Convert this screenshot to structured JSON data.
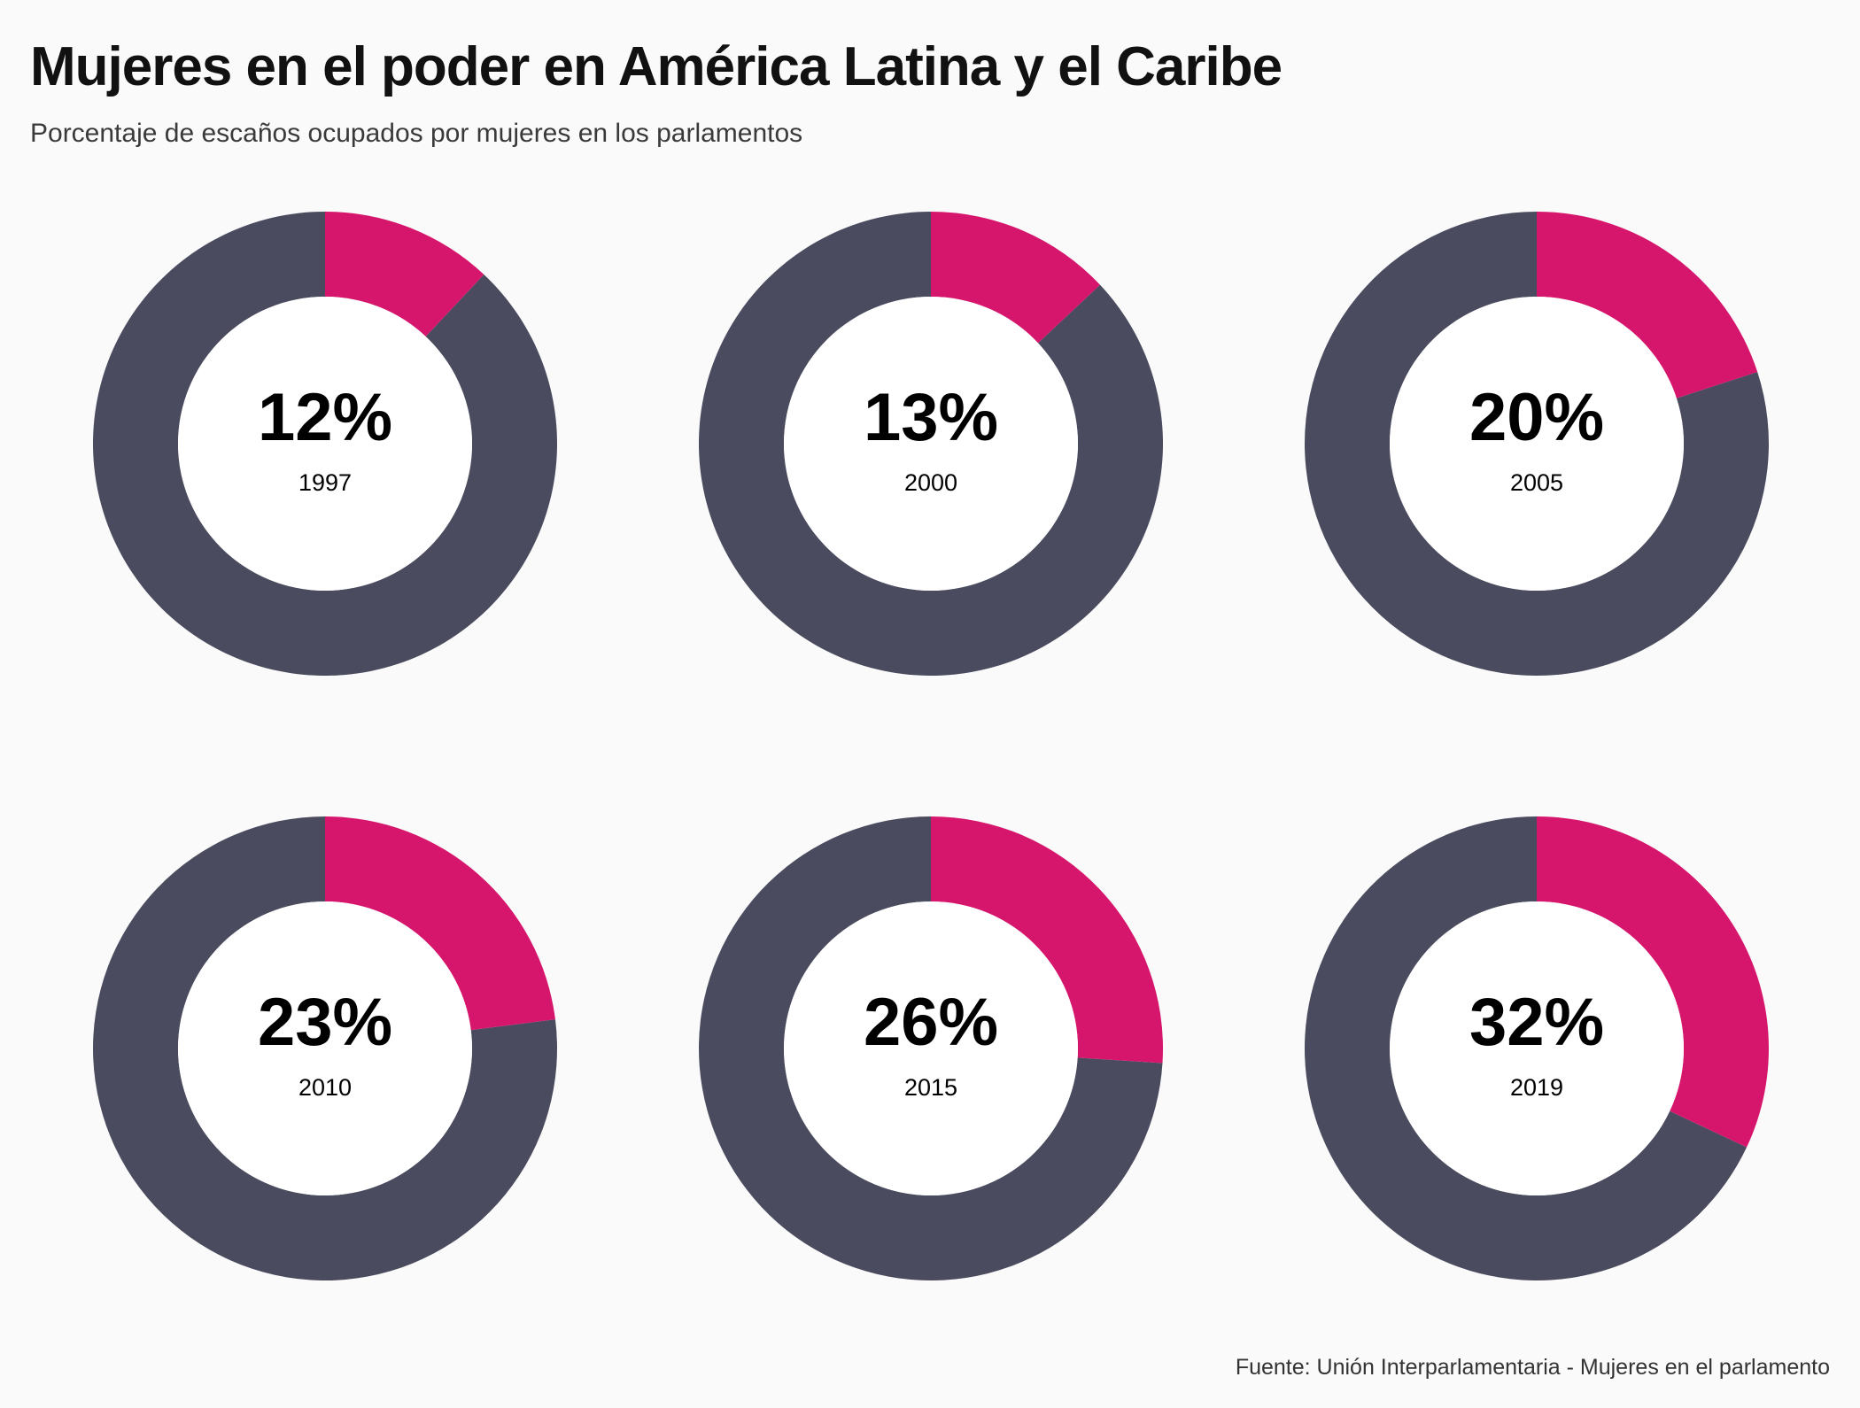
{
  "title": "Mujeres en el poder en América Latina y el Caribe",
  "subtitle": "Porcentaje de escaños ocupados por mujeres en los parlamentos",
  "source": "Fuente: Unión Interparlamentaria - Mujeres en el parlamento",
  "colors": {
    "women": "#d6166d",
    "rest": "#4a4b5e",
    "hole": "#ffffff",
    "text": "#000000"
  },
  "chart_data": {
    "type": "pie",
    "variant": "donut",
    "unit": "%",
    "panels": [
      {
        "year": "1997",
        "value": 12,
        "label": "12%"
      },
      {
        "year": "2000",
        "value": 13,
        "label": "13%"
      },
      {
        "year": "2005",
        "value": 20,
        "label": "20%"
      },
      {
        "year": "2010",
        "value": 23,
        "label": "23%"
      },
      {
        "year": "2015",
        "value": 26,
        "label": "26%"
      },
      {
        "year": "2019",
        "value": 32,
        "label": "32%"
      }
    ]
  }
}
